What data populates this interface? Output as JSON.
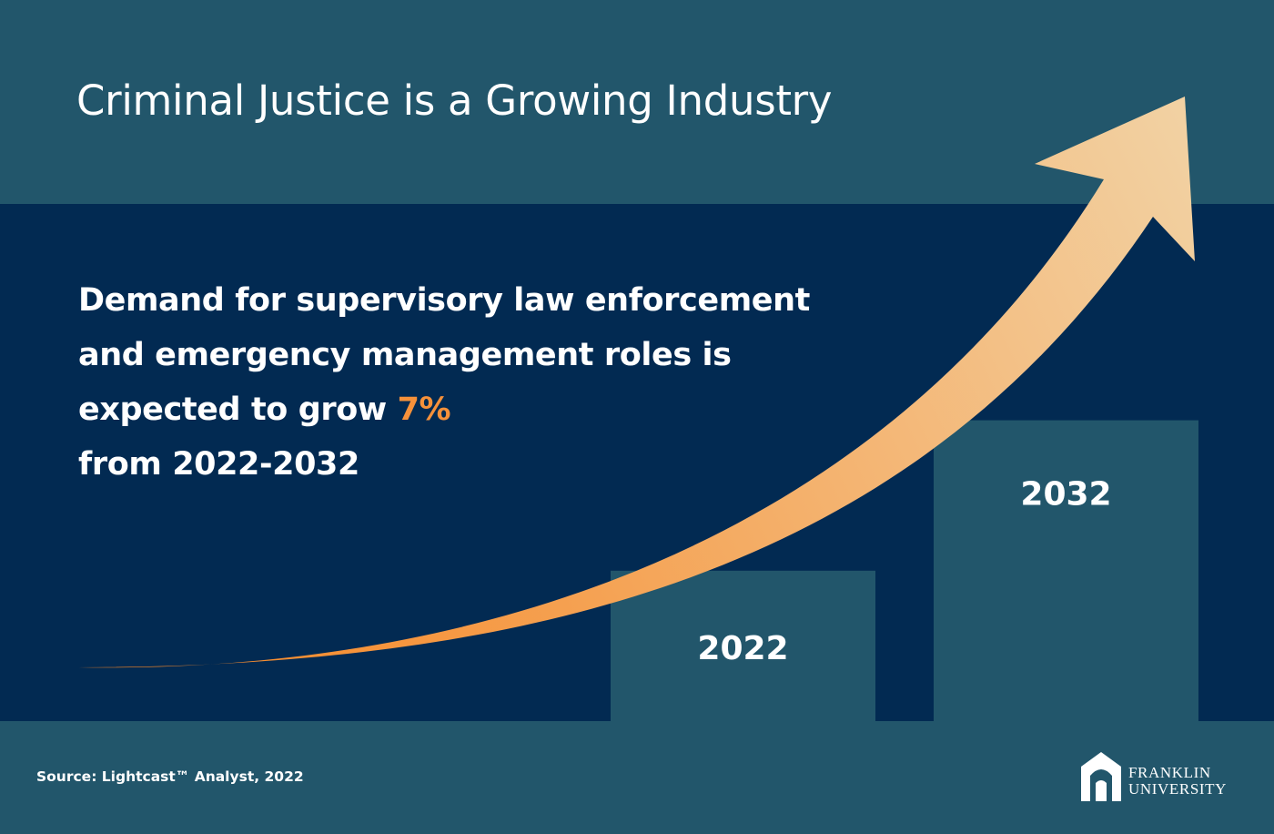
{
  "title": "Criminal Justice is a Growing Industry",
  "headline": {
    "line1": "Demand for supervisory law enforcement",
    "line2": "and emergency management roles is",
    "line3_prefix": "expected to grow ",
    "growth_value": "7%",
    "line4": "from 2022-2032"
  },
  "source": "Source: Lightcast™ Analyst, 2022",
  "logo": {
    "line1": "FRANKLIN",
    "line2": "UNIVERSITY"
  },
  "colors": {
    "header_bg": "#22566b",
    "main_bg": "#022a52",
    "bar": "#22566b",
    "accent_orange": "#f6913a",
    "arrow_start": "#f7831f",
    "arrow_end": "#f2d2a4"
  },
  "chart_data": {
    "type": "bar",
    "categories": [
      "2022",
      "2032"
    ],
    "values": [
      100,
      107
    ],
    "title": "",
    "xlabel": "",
    "ylabel": "",
    "ylim": [
      93,
      108
    ],
    "grid": false,
    "legend": "none",
    "data_labels": [
      "2022",
      "2032"
    ],
    "trend_arrow": true
  }
}
